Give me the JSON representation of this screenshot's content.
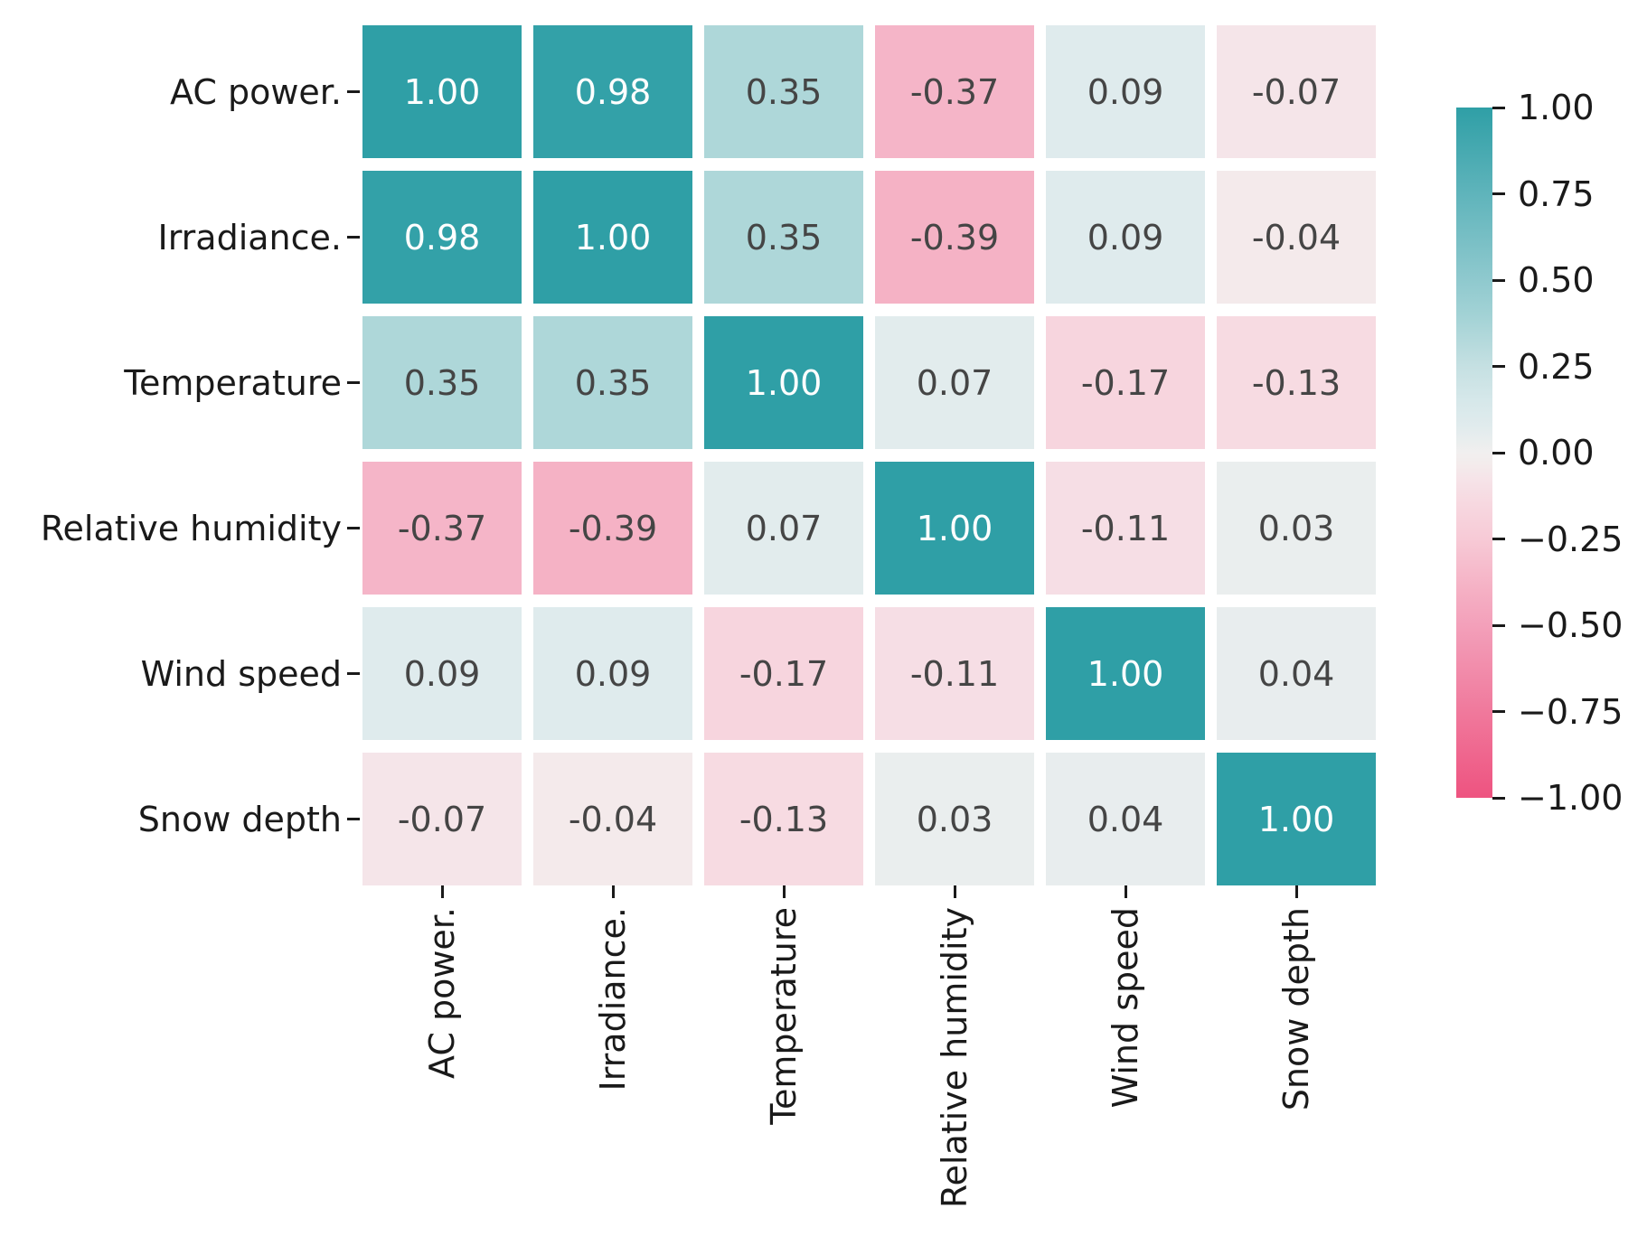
{
  "figure": {
    "background": "#ffffff"
  },
  "chart_data": {
    "type": "heatmap",
    "title": "",
    "variables": [
      "AC power.",
      "Irradiance.",
      "Temperature",
      "Relative humidity",
      "Wind speed",
      "Snow depth"
    ],
    "matrix": [
      [
        1.0,
        0.98,
        0.35,
        -0.37,
        0.09,
        -0.07
      ],
      [
        0.98,
        1.0,
        0.35,
        -0.39,
        0.09,
        -0.04
      ],
      [
        0.35,
        0.35,
        1.0,
        0.07,
        -0.17,
        -0.13
      ],
      [
        -0.37,
        -0.39,
        0.07,
        1.0,
        -0.11,
        0.03
      ],
      [
        0.09,
        0.09,
        -0.17,
        -0.11,
        1.0,
        0.04
      ],
      [
        -0.07,
        -0.04,
        -0.13,
        0.03,
        0.04,
        1.0
      ]
    ],
    "annotation_decimals": 2,
    "colorbar": {
      "vmin": -1,
      "vmax": 1,
      "tick_values": [
        1.0,
        0.75,
        0.5,
        0.25,
        0.0,
        -0.25,
        -0.5,
        -0.75,
        -1.0
      ],
      "tick_labels": [
        "1.00",
        "0.75",
        "0.50",
        "0.25",
        "0.00",
        "−0.25",
        "−0.50",
        "−0.75",
        "−1.00"
      ],
      "position": "right"
    },
    "palette": {
      "name": "pink-white-teal-diverging",
      "stops": [
        {
          "v": -1.0,
          "c": "#ee5380"
        },
        {
          "v": -0.75,
          "c": "#f0799c"
        },
        {
          "v": -0.5,
          "c": "#f3a0ba"
        },
        {
          "v": -0.4,
          "c": "#f5b0c4"
        },
        {
          "v": -0.25,
          "c": "#f7cad6"
        },
        {
          "v": -0.15,
          "c": "#f7d8e0"
        },
        {
          "v": -0.08,
          "c": "#f6e3e8"
        },
        {
          "v": -0.03,
          "c": "#f3ecec"
        },
        {
          "v": 0.0,
          "c": "#f1efef"
        },
        {
          "v": 0.03,
          "c": "#eaeeee"
        },
        {
          "v": 0.08,
          "c": "#e0ebed"
        },
        {
          "v": 0.15,
          "c": "#d6e8ea"
        },
        {
          "v": 0.25,
          "c": "#c5e0e2"
        },
        {
          "v": 0.4,
          "c": "#a2d2d5"
        },
        {
          "v": 0.5,
          "c": "#8fc9ce"
        },
        {
          "v": 0.75,
          "c": "#5fb4bb"
        },
        {
          "v": 1.0,
          "c": "#2f9fa6"
        }
      ]
    },
    "colors": {
      "annotation_dark": "#454545",
      "annotation_light": "#ffffff",
      "axis_label": "#1a1a1a",
      "tick_mark": "#1a1a1a",
      "cell_gap": "#ffffff",
      "background": "#ffffff"
    },
    "layout_hints": {
      "grid_lines": "off",
      "legend_position": "right-colorbar",
      "x_tick_rotation": 90,
      "square_cells": true
    }
  }
}
